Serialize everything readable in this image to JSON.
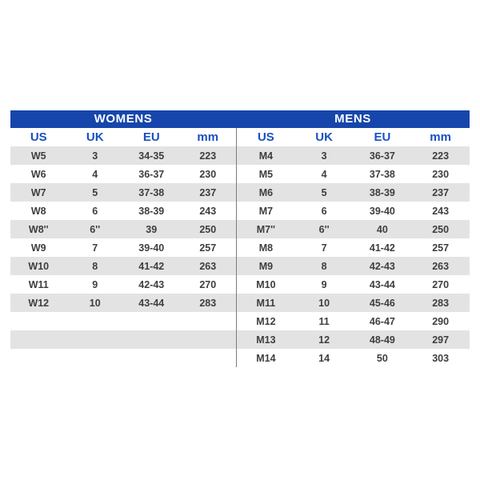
{
  "chart_data": [
    {
      "type": "table",
      "title": "WOMENS",
      "columns": [
        "US",
        "UK",
        "EU",
        "mm"
      ],
      "rows": [
        [
          "W5",
          "3",
          "34-35",
          "223"
        ],
        [
          "W6",
          "4",
          "36-37",
          "230"
        ],
        [
          "W7",
          "5",
          "37-38",
          "237"
        ],
        [
          "W8",
          "6",
          "38-39",
          "243"
        ],
        [
          "W8''",
          "6''",
          "39",
          "250"
        ],
        [
          "W9",
          "7",
          "39-40",
          "257"
        ],
        [
          "W10",
          "8",
          "41-42",
          "263"
        ],
        [
          "W11",
          "9",
          "42-43",
          "270"
        ],
        [
          "W12",
          "10",
          "43-44",
          "283"
        ]
      ]
    },
    {
      "type": "table",
      "title": "MENS",
      "columns": [
        "US",
        "UK",
        "EU",
        "mm"
      ],
      "rows": [
        [
          "M4",
          "3",
          "36-37",
          "223"
        ],
        [
          "M5",
          "4",
          "37-38",
          "230"
        ],
        [
          "M6",
          "5",
          "38-39",
          "237"
        ],
        [
          "M7",
          "6",
          "39-40",
          "243"
        ],
        [
          "M7''",
          "6''",
          "40",
          "250"
        ],
        [
          "M8",
          "7",
          "41-42",
          "257"
        ],
        [
          "M9",
          "8",
          "42-43",
          "263"
        ],
        [
          "M10",
          "9",
          "43-44",
          "270"
        ],
        [
          "M11",
          "10",
          "45-46",
          "283"
        ],
        [
          "M12",
          "11",
          "46-47",
          "290"
        ],
        [
          "M13",
          "12",
          "48-49",
          "297"
        ],
        [
          "M14",
          "14",
          "50",
          "303"
        ]
      ]
    }
  ],
  "colors": {
    "band_blue": "#1646ab",
    "column_header_blue": "#1850c0",
    "alt_row_gray": "#e3e3e3",
    "data_text_gray": "#3e3e3e",
    "divider_gray": "#7c7c7c"
  }
}
